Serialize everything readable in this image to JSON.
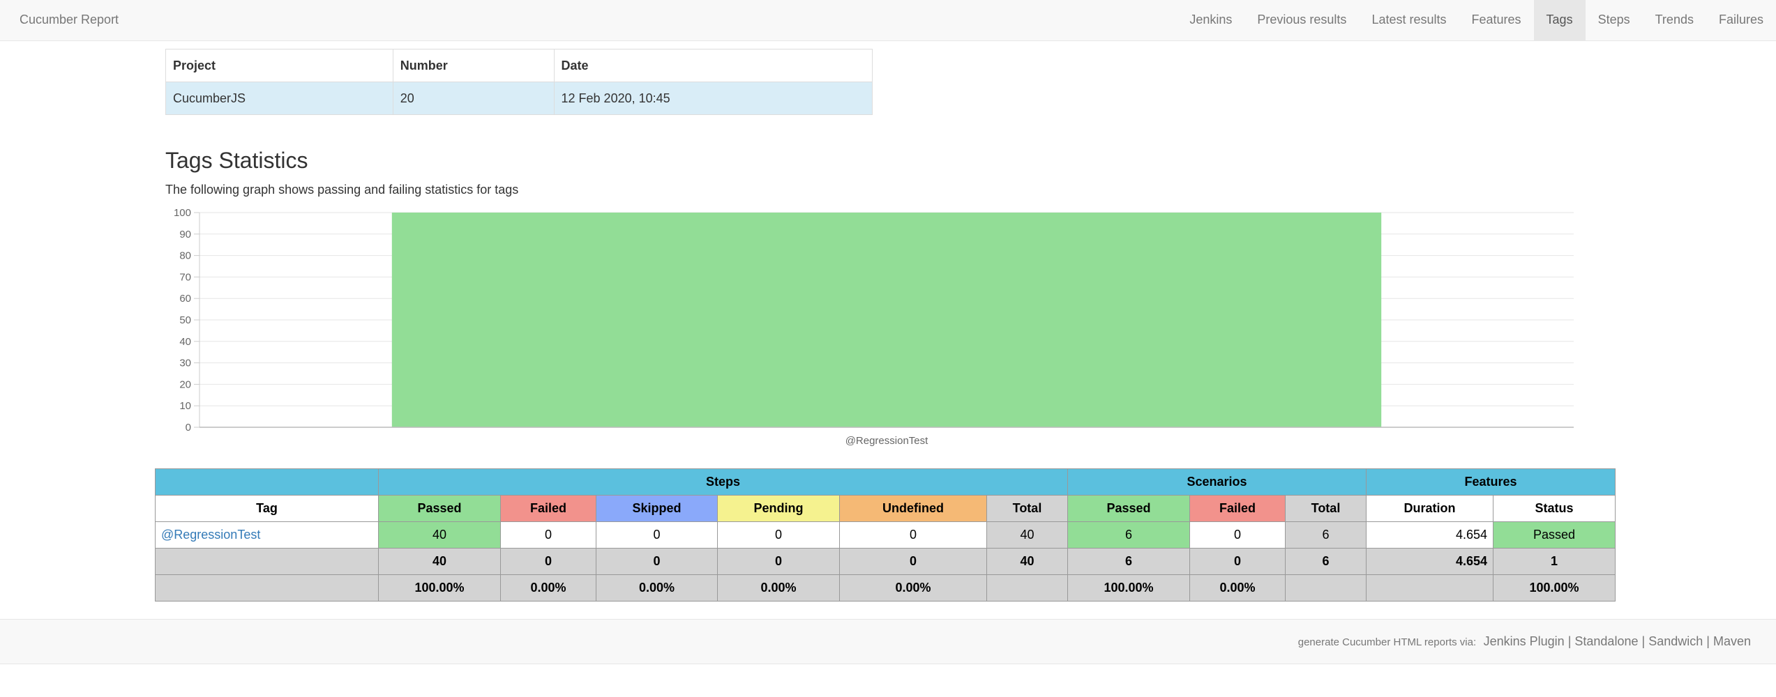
{
  "navbar": {
    "brand": "Cucumber Report",
    "items": [
      {
        "label": "Jenkins"
      },
      {
        "label": "Previous results"
      },
      {
        "label": "Latest results"
      },
      {
        "label": "Features"
      },
      {
        "label": "Tags"
      },
      {
        "label": "Steps"
      },
      {
        "label": "Trends"
      },
      {
        "label": "Failures"
      }
    ],
    "active": "Tags"
  },
  "report_info": {
    "headers": [
      "Project",
      "Number",
      "Date"
    ],
    "row": [
      "CucumberJS",
      "20",
      "12 Feb 2020, 10:45"
    ]
  },
  "section": {
    "title": "Tags Statistics",
    "description": "The following graph shows passing and failing statistics for tags"
  },
  "chart_data": {
    "type": "bar",
    "categories": [
      "@RegressionTest"
    ],
    "values": [
      100
    ],
    "ylim": [
      0,
      100
    ],
    "yticks": [
      0,
      10,
      20,
      30,
      40,
      50,
      60,
      70,
      80,
      90,
      100
    ],
    "grid": true,
    "color": "#92dd96"
  },
  "stats": {
    "groups": {
      "steps": "Steps",
      "scenarios": "Scenarios",
      "features": "Features"
    },
    "columns": {
      "tag": "Tag",
      "passed": "Passed",
      "failed": "Failed",
      "skipped": "Skipped",
      "pending": "Pending",
      "undefined": "Undefined",
      "total": "Total",
      "duration": "Duration",
      "status": "Status"
    },
    "rows": [
      {
        "tag": "@RegressionTest",
        "steps": {
          "passed": "40",
          "failed": "0",
          "skipped": "0",
          "pending": "0",
          "undefined": "0",
          "total": "40"
        },
        "scenarios": {
          "passed": "6",
          "failed": "0",
          "total": "6"
        },
        "features": {
          "duration": "4.654",
          "status": "Passed"
        }
      }
    ],
    "totals": {
      "steps": {
        "passed": "40",
        "failed": "0",
        "skipped": "0",
        "pending": "0",
        "undefined": "0",
        "total": "40"
      },
      "scenarios": {
        "passed": "6",
        "failed": "0",
        "total": "6"
      },
      "features": {
        "duration": "4.654",
        "status": "1"
      }
    },
    "percentages": {
      "steps": {
        "passed": "100.00%",
        "failed": "0.00%",
        "skipped": "0.00%",
        "pending": "0.00%",
        "undefined": "0.00%"
      },
      "scenarios": {
        "passed": "100.00%",
        "failed": "0.00%"
      },
      "features": {
        "status": "100.00%"
      }
    }
  },
  "footer": {
    "text": "generate Cucumber HTML reports via:",
    "links": [
      "Jenkins Plugin",
      "Standalone",
      "Sandwich",
      "Maven"
    ]
  },
  "colors": {
    "header": "#5bc0de",
    "passed": "#92dd96",
    "failed": "#f2928c",
    "skipped": "#8aa9fa",
    "pending": "#f5f28f",
    "undefined": "#f5b975",
    "total": "#d3d3d3",
    "report_row": "#d9edf7"
  }
}
